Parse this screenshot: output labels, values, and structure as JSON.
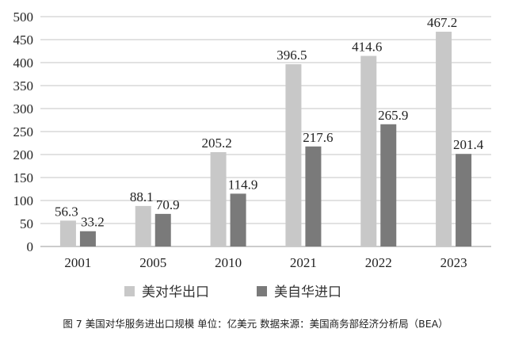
{
  "chart_data": {
    "type": "bar",
    "title": "",
    "categories": [
      "2001",
      "2005",
      "2010",
      "2021",
      "2022",
      "2023"
    ],
    "series": [
      {
        "name": "美对华出口",
        "color": "#c8c8c8",
        "values": [
          56.3,
          88.1,
          205.2,
          396.5,
          414.6,
          467.2
        ]
      },
      {
        "name": "美自华进口",
        "color": "#7a7a7a",
        "values": [
          33.2,
          70.9,
          114.9,
          217.6,
          265.9,
          201.4
        ]
      }
    ],
    "xlabel": "",
    "ylabel": "",
    "ylim": [
      0,
      500
    ],
    "yticks": [
      0,
      50,
      100,
      150,
      200,
      250,
      300,
      350,
      400,
      450,
      500
    ],
    "grid": true,
    "legend_position": "bottom",
    "data_labels": true
  },
  "caption": "图 7 美国对华服务进出口规模 单位：亿美元 数据来源：美国商务部经济分析局（BEA）"
}
